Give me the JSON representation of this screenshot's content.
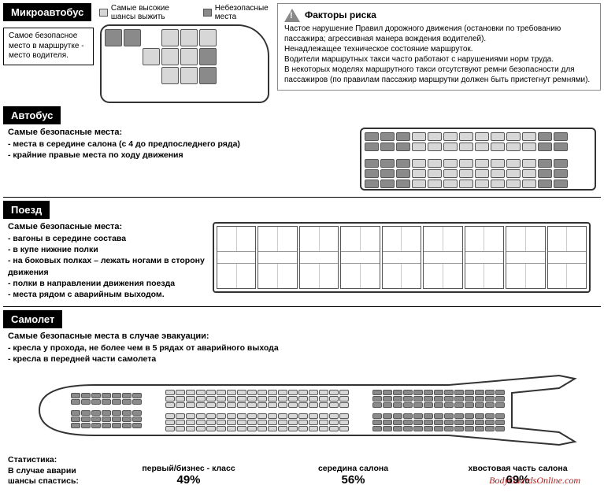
{
  "colors": {
    "light": "#d7d7d7",
    "dark": "#8a8a8a",
    "outline": "#333333",
    "black": "#000000",
    "warnBorder": "#888888",
    "watermark": "#b01818"
  },
  "legend": {
    "light": "Самые высокие шансы выжить",
    "dark": "Небезопасные места"
  },
  "microbus": {
    "title": "Микроавтобус",
    "note": "Самое безопасное место в маршрутке - место водителя.",
    "seats": {
      "rows": 3,
      "cols": 6,
      "cellW": 22,
      "cellH": 22,
      "pattern": [
        [
          "dark",
          "dark",
          "",
          "light",
          "light",
          "light"
        ],
        [
          "",
          "",
          "light",
          "light",
          "light",
          "dark"
        ],
        [
          "",
          "",
          "",
          "light",
          "light",
          "dark"
        ]
      ]
    }
  },
  "risk": {
    "title": "Факторы риска",
    "lines": [
      "Частое нарушение Правил дорожного движения (остановки по требованию пассажира; агрессивная манера вождения водителей).",
      "Ненадлежащее техническое состояние маршруток.",
      "Водители маршрутных такси часто работают с нарушениями норм труда.",
      "В некоторых моделях маршрутного такси отсутствуют ремни безопасности для пассажиров (по правилам пассажир маршрутки должен быть пристегнут ремнями)."
    ]
  },
  "bus": {
    "title": "Автобус",
    "heading": "Самые безопасные места:",
    "bullets": [
      "- места в середине салона (с 4 до предпоследнего ряда)",
      "- крайние правые места по ходу движения"
    ],
    "seats": {
      "rows": 5,
      "cols": 13,
      "cellW": 18,
      "cellH": 11,
      "aisleAfterRow": 2,
      "colorByCol": [
        "dark",
        "dark",
        "dark",
        "light",
        "light",
        "light",
        "light",
        "light",
        "light",
        "light",
        "light",
        "dark",
        "dark"
      ]
    }
  },
  "train": {
    "title": "Поезд",
    "heading": "Самые безопасные места:",
    "bullets": [
      "- вагоны в середине состава",
      "- в купе нижние полки",
      "- на боковых полках – лежать ногами в сторону движения",
      "- полки в направлении движения поезда",
      "- места рядом с аварийным выходом."
    ],
    "compartments": 9,
    "compW": 44
  },
  "plane": {
    "title": "Самолет",
    "heading": "Самые безопасные места в случае эвакуации:",
    "bullets": [
      "- кресла у прохода, не более чем в 5 рядах от аварийного выхода",
      "- кресла в передней части самолета"
    ],
    "sections": [
      {
        "cols": 7,
        "rows": 5,
        "color": "dark",
        "aisleAfterRow": 2
      },
      {
        "cols": 18,
        "rows": 6,
        "color": "light",
        "aisleAfterRow": 3
      },
      {
        "cols": 13,
        "rows": 6,
        "color": "dark",
        "aisleAfterRow": 3
      }
    ],
    "cellW": 12,
    "cellH": 7,
    "statsLabel": "Статистика:\nВ случае аварии шансы спастись:",
    "stats": [
      {
        "name": "первый/бизнес - класс",
        "value": "49%"
      },
      {
        "name": "середина салона",
        "value": "56%"
      },
      {
        "name": "хвостовая часть салона",
        "value": "69%"
      }
    ]
  },
  "watermark": "BodyGuardsOnline.com"
}
